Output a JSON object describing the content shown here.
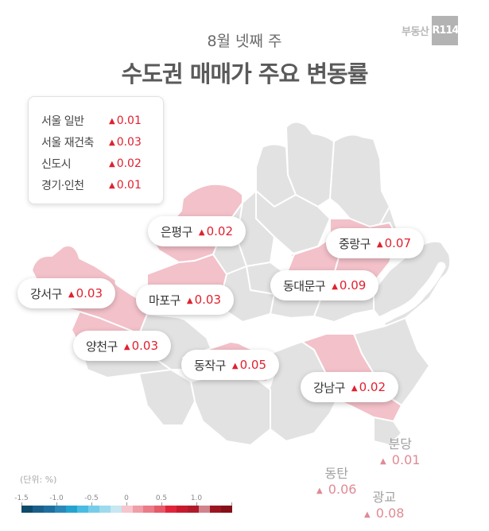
{
  "logo": {
    "text": "부동산",
    "box": "R114"
  },
  "header": {
    "subtitle": "8월 넷째 주",
    "title": "수도권 매매가 주요 변동률"
  },
  "summary": {
    "items": [
      {
        "label": "서울 일반",
        "value": "0.01"
      },
      {
        "label": "서울 재건축",
        "value": "0.03"
      },
      {
        "label": "신도시",
        "value": "0.02"
      },
      {
        "label": "경기·인천",
        "value": "0.01"
      }
    ],
    "up_symbol": "▲"
  },
  "districts": [
    {
      "name": "은평구",
      "value": "0.02"
    },
    {
      "name": "중랑구",
      "value": "0.07"
    },
    {
      "name": "강서구",
      "value": "0.03"
    },
    {
      "name": "마포구",
      "value": "0.03"
    },
    {
      "name": "동대문구",
      "value": "0.09"
    },
    {
      "name": "양천구",
      "value": "0.03"
    },
    {
      "name": "동작구",
      "value": "0.05"
    },
    {
      "name": "강남구",
      "value": "0.02"
    }
  ],
  "new_towns": [
    {
      "name": "분당",
      "value": "0.01"
    },
    {
      "name": "동탄",
      "value": "0.06"
    },
    {
      "name": "광교",
      "value": "0.08"
    }
  ],
  "legend": {
    "unit": "(단위:  %)",
    "ticks": [
      "-1.5",
      "-1.0",
      "-0.5",
      "0",
      "0.5",
      "1.0"
    ],
    "colors": [
      "#0e4a6b",
      "#1a5f8a",
      "#1e6fa0",
      "#2a88b8",
      "#24a3cf",
      "#49bce2",
      "#77cde9",
      "#9fd9ee",
      "#c7e7f1",
      "#f5c6cd",
      "#f09ea8",
      "#eb7b88",
      "#e65968",
      "#e0253a",
      "#c81a2e",
      "#b01a2a",
      "#d0848d",
      "#9b1520",
      "#851118"
    ]
  },
  "colors": {
    "increase": "#e0212f",
    "map_base": "#e2e2e2",
    "map_highlight": "#f3c1c9",
    "river": "#ffffff"
  }
}
